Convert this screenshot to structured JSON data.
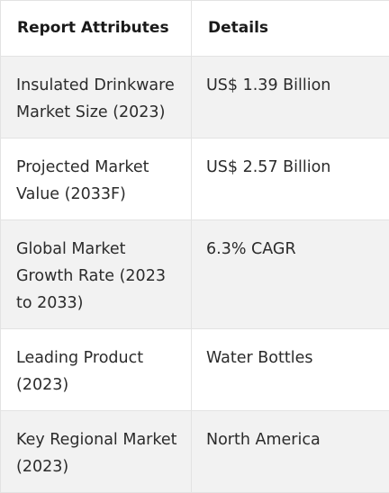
{
  "table": {
    "headers": [
      "Report Attributes",
      "Details"
    ],
    "rows": [
      {
        "attribute": "Insulated Drinkware Market Size (2023)",
        "detail": "US$ 1.39 Billion"
      },
      {
        "attribute": "Projected Market Value (2033F)",
        "detail": "US$ 2.57 Billion"
      },
      {
        "attribute": "Global Market Growth Rate (2023 to 2033)",
        "detail": "6.3% CAGR"
      },
      {
        "attribute": "Leading Product (2023)",
        "detail": "Water Bottles"
      },
      {
        "attribute": "Key Regional Market (2023)",
        "detail": "North America"
      }
    ]
  }
}
